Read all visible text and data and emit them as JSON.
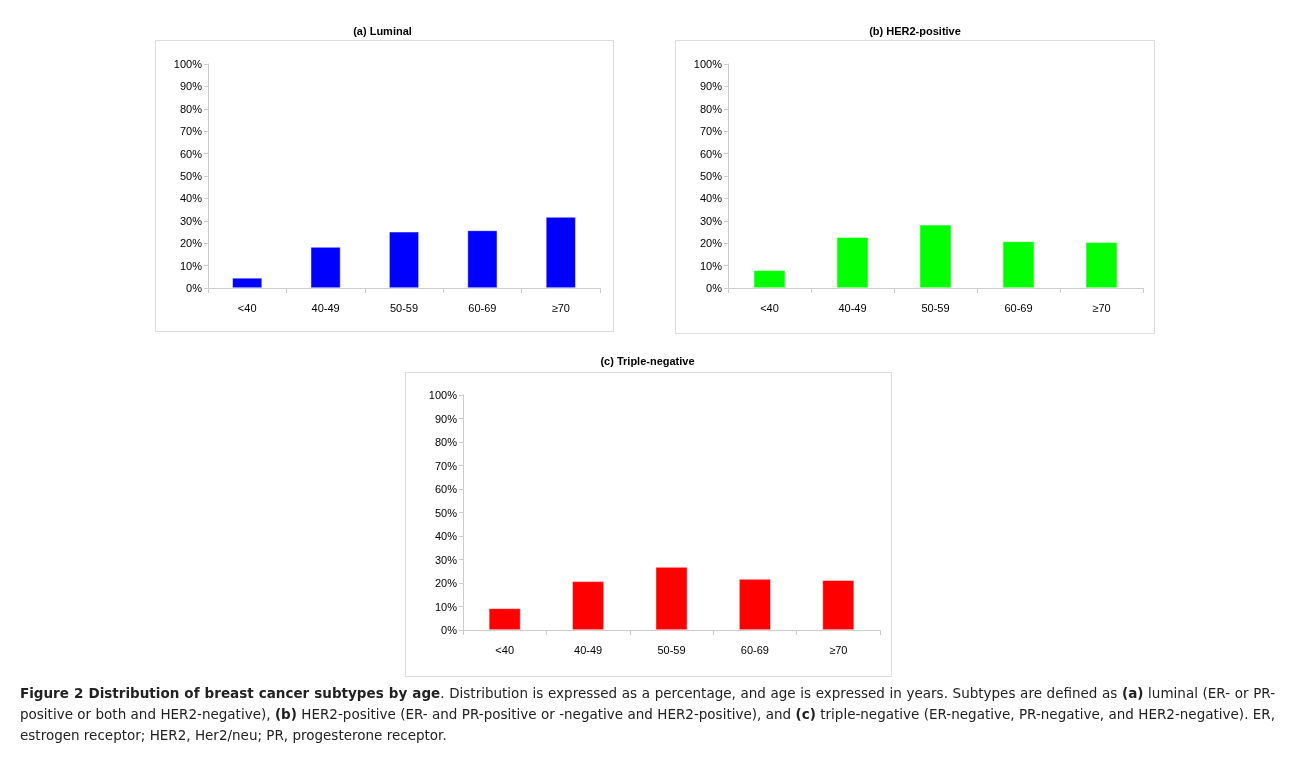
{
  "chart_data": [
    {
      "type": "bar",
      "title": "(a) Luminal",
      "categories": [
        "<40",
        "40-49",
        "50-59",
        "60-69",
        "≥70"
      ],
      "series": [
        {
          "color": "#0000ff",
          "values": [
            4.5,
            18.3,
            25.1,
            25.7,
            31.7
          ]
        }
      ],
      "ylim": [
        0,
        100
      ],
      "yticks": [
        {
          "value": 0,
          "label": "0%"
        },
        {
          "value": 10,
          "label": "10%"
        },
        {
          "value": 20,
          "label": "20%"
        },
        {
          "value": 30,
          "label": "30%"
        },
        {
          "value": 40,
          "label": "40%"
        },
        {
          "value": 50,
          "label": "50%"
        },
        {
          "value": 60,
          "label": "60%"
        },
        {
          "value": 70,
          "label": "70%"
        },
        {
          "value": 80,
          "label": "80%"
        },
        {
          "value": 90,
          "label": "90%"
        },
        {
          "value": 100,
          "label": "100%"
        }
      ]
    },
    {
      "type": "bar",
      "title": "(b) HER2-positive",
      "categories": [
        "<40",
        "40-49",
        "50-59",
        "60-69",
        "≥70"
      ],
      "series": [
        {
          "color": "#00ff00",
          "values": [
            7.9,
            22.7,
            28.2,
            20.8,
            20.4
          ]
        }
      ],
      "ylim": [
        0,
        100
      ],
      "yticks": [
        {
          "value": 0,
          "label": "0%"
        },
        {
          "value": 10,
          "label": "10%"
        },
        {
          "value": 20,
          "label": "20%"
        },
        {
          "value": 30,
          "label": "30%"
        },
        {
          "value": 40,
          "label": "40%"
        },
        {
          "value": 50,
          "label": "50%"
        },
        {
          "value": 60,
          "label": "60%"
        },
        {
          "value": 70,
          "label": "70%"
        },
        {
          "value": 80,
          "label": "80%"
        },
        {
          "value": 90,
          "label": "90%"
        },
        {
          "value": 100,
          "label": "100%"
        }
      ]
    },
    {
      "type": "bar",
      "title": "(c) Triple-negative",
      "categories": [
        "<40",
        "40-49",
        "50-59",
        "60-69",
        "≥70"
      ],
      "series": [
        {
          "color": "#ff0000",
          "values": [
            9.2,
            20.7,
            26.8,
            21.7,
            21.2
          ]
        }
      ],
      "ylim": [
        0,
        100
      ],
      "yticks": [
        {
          "value": 0,
          "label": "0%"
        },
        {
          "value": 10,
          "label": "10%"
        },
        {
          "value": 20,
          "label": "20%"
        },
        {
          "value": 30,
          "label": "30%"
        },
        {
          "value": 40,
          "label": "40%"
        },
        {
          "value": 50,
          "label": "50%"
        },
        {
          "value": 60,
          "label": "60%"
        },
        {
          "value": 70,
          "label": "70%"
        },
        {
          "value": 80,
          "label": "80%"
        },
        {
          "value": 90,
          "label": "90%"
        },
        {
          "value": 100,
          "label": "100%"
        }
      ],
      "annotations": [
        "Figure 2 Distribution of breast cancer subtypes by age",
        ". Distribution is expressed as a percentage, and age is expressed in years. Subtypes are defined as ",
        "(a)",
        " luminal (ER- or PR-positive or both and HER2-negative), ",
        "(b)",
        " HER2-positive (ER- and PR-positive or -negative and HER2-positive), and ",
        "(c)",
        " triple-negative (ER-negative, PR-negative, and HER2-negative). ER, estrogen receptor; HER2, Her2/neu; PR, progesterone receptor."
      ]
    }
  ]
}
